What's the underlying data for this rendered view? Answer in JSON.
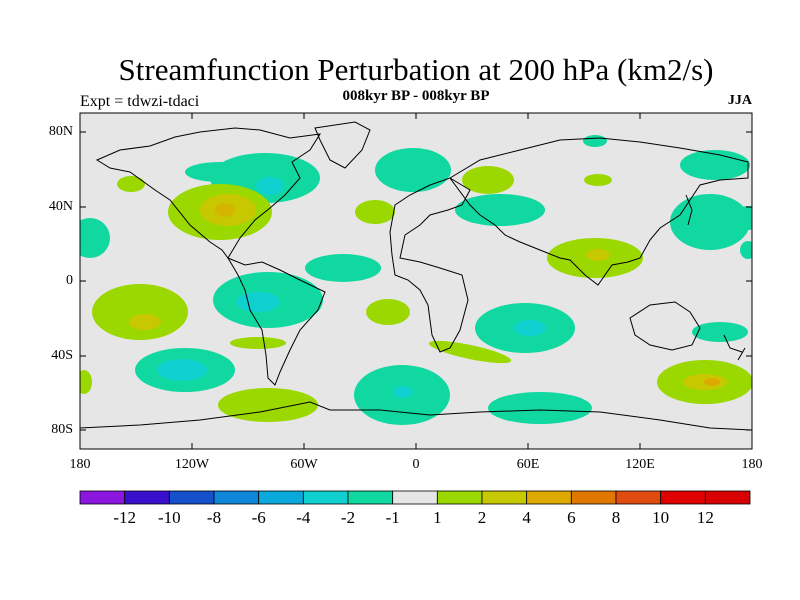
{
  "title": "Streamfunction Perturbation at 200 hPa (km2/s)",
  "subtitle": "008kyr BP - 008kyr BP",
  "experiment": "Expt = tdwzi-tdaci",
  "season": "JJA",
  "map": {
    "lat_ticks": [
      "80N",
      "40N",
      "0",
      "40S",
      "80S"
    ],
    "lon_ticks": [
      "180",
      "120W",
      "60W",
      "0",
      "60E",
      "120E",
      "180"
    ],
    "background_color": "#e6e6e6"
  },
  "colorbar": {
    "labels": [
      "-12",
      "-10",
      "-8",
      "-6",
      "-4",
      "-2",
      "-1",
      "1",
      "2",
      "4",
      "6",
      "8",
      "10",
      "12"
    ],
    "colors": [
      "#8a16e0",
      "#3a10cf",
      "#1750cc",
      "#0f86d8",
      "#0aa9dc",
      "#10cfcf",
      "#10d8a0",
      "#e6e6e6",
      "#9ad800",
      "#c8c800",
      "#dcaa00",
      "#e07800",
      "#e04c10",
      "#e00000",
      "#d80000"
    ]
  },
  "colors": {
    "neg1": "#10d8a0",
    "neg2": "#10cfcf",
    "pos1": "#9ad800",
    "pos2": "#c8c800",
    "pos3": "#dcaa00"
  }
}
